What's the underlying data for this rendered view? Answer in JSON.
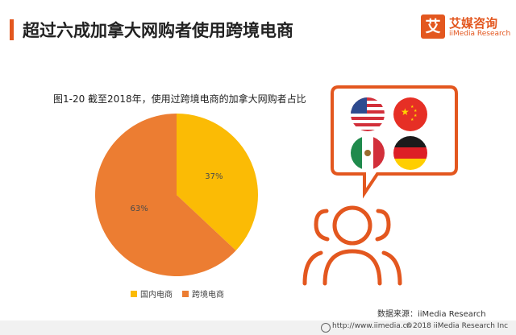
{
  "header": {
    "title": "超过六成加拿大网购者使用跨境电商",
    "accent_color": "#e3571f"
  },
  "brand": {
    "icon_char": "艾",
    "name_cn": "艾媒咨询",
    "name_en": "iiMedia Research",
    "icon": "iimedia-logo-icon"
  },
  "chart_data": {
    "type": "pie",
    "title": "图1-20  截至2018年，使用过跨境电商的加拿大网购者占比",
    "slices": [
      {
        "label": "国内电商",
        "value": 37,
        "display": "37%",
        "color": "#fbbb05"
      },
      {
        "label": "跨境电商",
        "value": 63,
        "display": "63%",
        "color": "#ec7d32"
      }
    ],
    "legend_position": "bottom"
  },
  "illustration": {
    "flags": [
      "usa-flag-icon",
      "china-flag-icon",
      "mexico-flag-icon",
      "germany-flag-icon"
    ],
    "people_icon": "users-icon",
    "color": "#e3571f"
  },
  "source_text": "数据来源：iiMedia Research",
  "footer": {
    "url": "http://www.iimedia.cn",
    "copyright": "©2018  iiMedia Research  Inc"
  }
}
